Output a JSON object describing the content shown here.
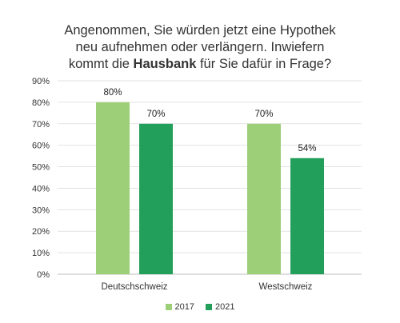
{
  "chart_data": {
    "type": "bar",
    "title": {
      "line1": "Angenommen, Sie würden jetzt eine Hypothek",
      "line2": "neu aufnehmen oder verlängern. Inwiefern",
      "line3_pre": "kommt die ",
      "line3_bold": "Hausbank",
      "line3_post": " für Sie dafür in Frage?"
    },
    "categories": [
      "Deutschschweiz",
      "Westschweiz"
    ],
    "series": [
      {
        "name": "2017",
        "values": [
          80,
          70
        ],
        "labels": [
          "80%",
          "70%"
        ],
        "color": "#9ccf78"
      },
      {
        "name": "2021",
        "values": [
          70,
          54
        ],
        "labels": [
          "70%",
          "54%"
        ],
        "color": "#239f5c"
      }
    ],
    "ylim": [
      0,
      90
    ],
    "yticks": [
      "0%",
      "10%",
      "20%",
      "30%",
      "40%",
      "50%",
      "60%",
      "70%",
      "80%",
      "90%"
    ],
    "grid": true,
    "legend_position": "bottom"
  }
}
